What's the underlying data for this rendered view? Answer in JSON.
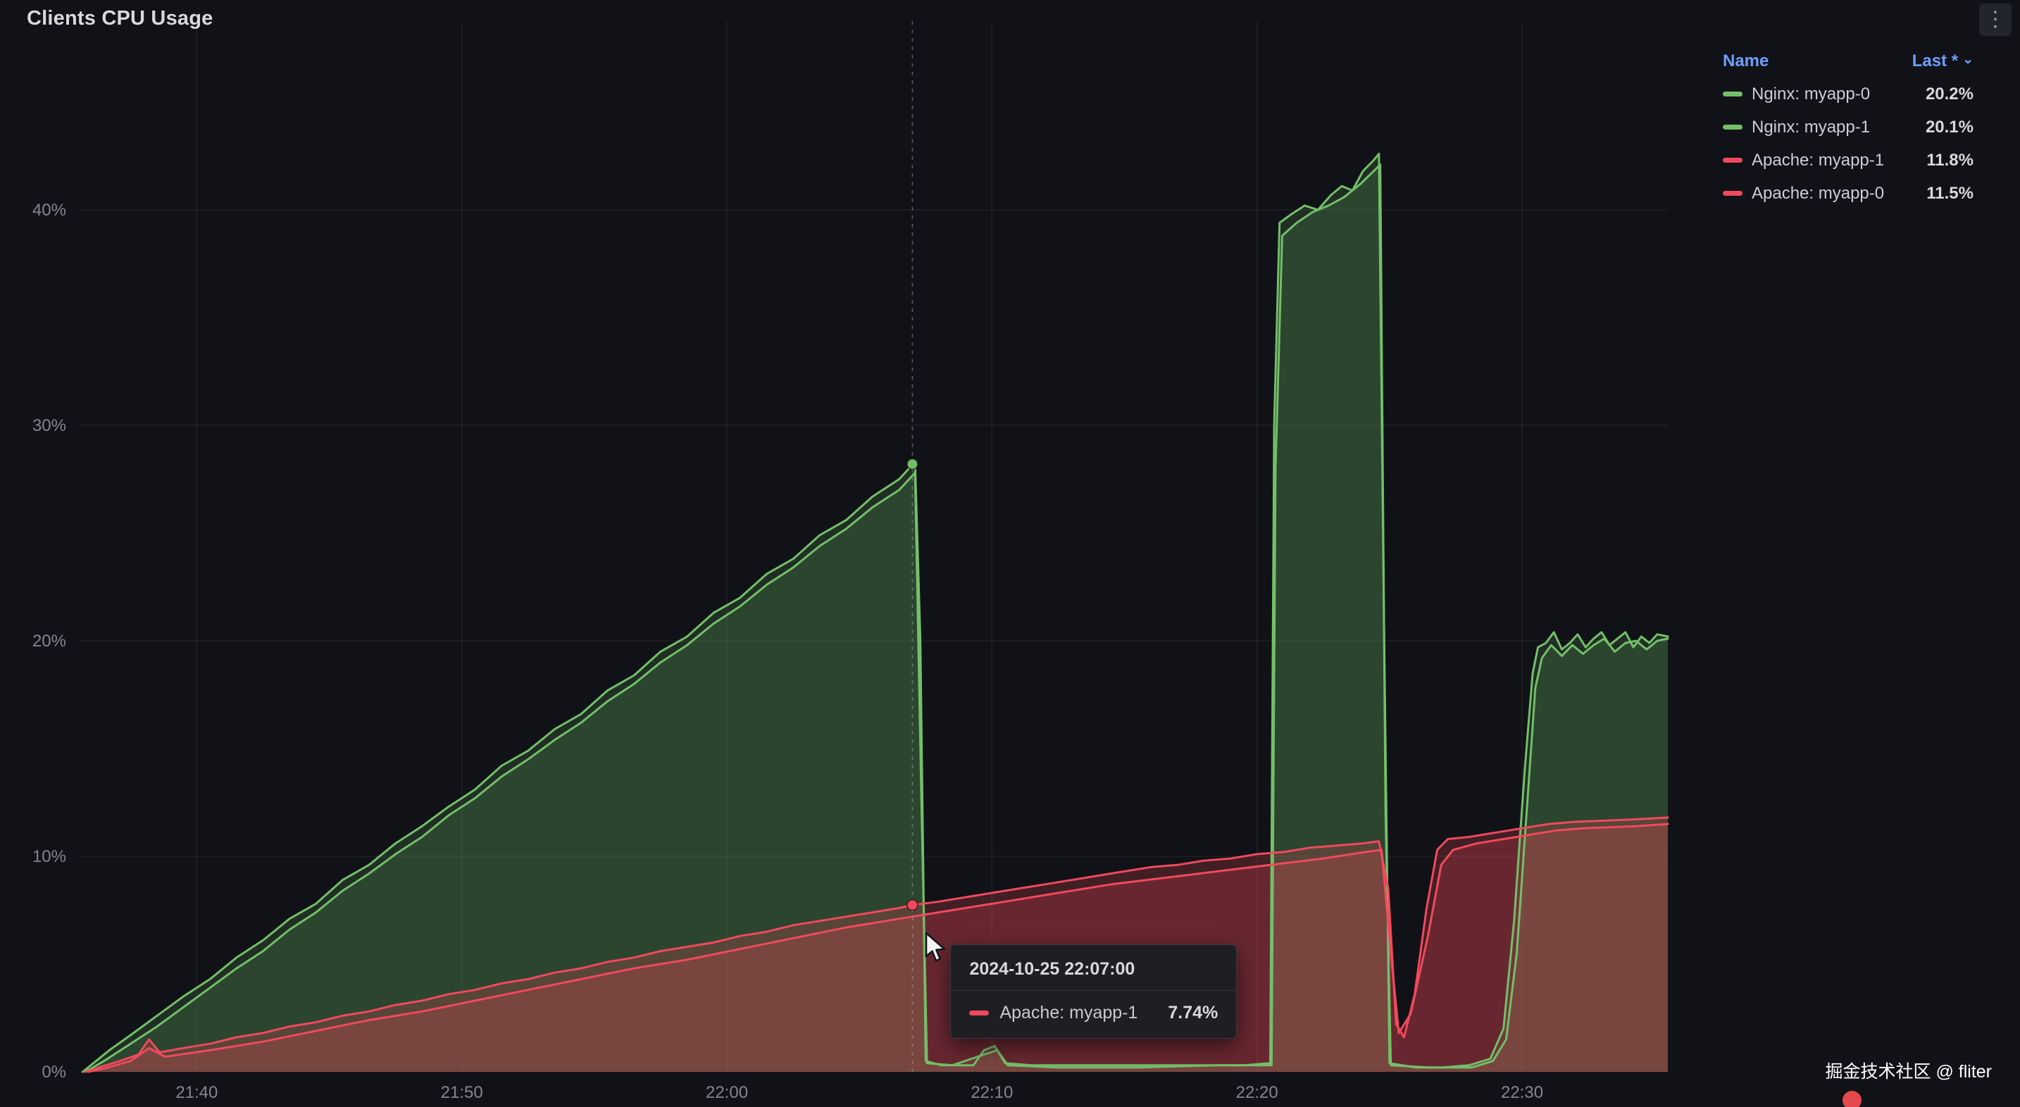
{
  "panel": {
    "title": "Clients CPU Usage"
  },
  "legend": {
    "name_header": "Name",
    "last_header": "Last *",
    "sort_caret": "⌄",
    "items": [
      {
        "label": "Nginx: myapp-0",
        "value": "20.2%",
        "color": "#73bf69"
      },
      {
        "label": "Nginx: myapp-1",
        "value": "20.1%",
        "color": "#73bf69"
      },
      {
        "label": "Apache: myapp-1",
        "value": "11.8%",
        "color": "#f2495c"
      },
      {
        "label": "Apache: myapp-0",
        "value": "11.5%",
        "color": "#f2495c"
      }
    ]
  },
  "tooltip": {
    "timestamp": "2024-10-25 22:07:00",
    "series_label": "Apache: myapp-1",
    "value": "7.74%",
    "marker_color": "#f2495c"
  },
  "watermark": {
    "text": "掘金技术社区 @ fliter"
  },
  "chart_data": {
    "type": "area",
    "title": "Clients CPU Usage",
    "unit": "%",
    "x_axis_start": "21:35:30",
    "x_axis_end": "22:35:30",
    "t_unit": "minutes since 21:35:30",
    "t_max": 60,
    "y_max": 48.8,
    "grid": true,
    "legend_position": "top-right",
    "x_ticks": [
      {
        "label": "21:40",
        "t": 4.5
      },
      {
        "label": "21:50",
        "t": 14.5
      },
      {
        "label": "22:00",
        "t": 24.5
      },
      {
        "label": "22:10",
        "t": 34.5
      },
      {
        "label": "22:20",
        "t": 44.5
      },
      {
        "label": "22:30",
        "t": 54.5
      }
    ],
    "y_ticks": [
      {
        "label": "0%",
        "v": 0
      },
      {
        "label": "10%",
        "v": 10
      },
      {
        "label": "20%",
        "v": 20
      },
      {
        "label": "30%",
        "v": 30
      },
      {
        "label": "40%",
        "v": 40
      }
    ],
    "crosshair": {
      "t": 31.5,
      "time": "2024-10-25 22:07:00",
      "points": [
        {
          "series": "Nginx: myapp-0",
          "v": 28.2,
          "color": "#73bf69"
        },
        {
          "series": "Apache: myapp-1",
          "v": 7.74,
          "color": "#f2495c"
        }
      ]
    },
    "series": [
      {
        "name": "Nginx: myapp-0",
        "color": "#73bf69",
        "fill_opacity": 0.16,
        "last": 20.2,
        "points": [
          [
            0.2,
            0
          ],
          [
            0.6,
            0.4
          ],
          [
            1.2,
            1.0
          ],
          [
            2,
            1.7
          ],
          [
            3,
            2.6
          ],
          [
            4,
            3.5
          ],
          [
            5,
            4.3
          ],
          [
            6,
            5.3
          ],
          [
            7,
            6.1
          ],
          [
            8,
            7.1
          ],
          [
            9,
            7.8
          ],
          [
            10,
            8.9
          ],
          [
            11,
            9.6
          ],
          [
            12,
            10.6
          ],
          [
            13,
            11.4
          ],
          [
            14,
            12.3
          ],
          [
            15,
            13.1
          ],
          [
            16,
            14.2
          ],
          [
            17,
            14.9
          ],
          [
            18,
            15.9
          ],
          [
            19,
            16.6
          ],
          [
            20,
            17.7
          ],
          [
            21,
            18.4
          ],
          [
            22,
            19.5
          ],
          [
            23,
            20.2
          ],
          [
            24,
            21.3
          ],
          [
            25,
            22.0
          ],
          [
            26,
            23.1
          ],
          [
            27,
            23.8
          ],
          [
            28,
            24.9
          ],
          [
            29,
            25.6
          ],
          [
            30,
            26.7
          ],
          [
            31,
            27.5
          ],
          [
            31.6,
            28.3
          ],
          [
            31.8,
            20.0
          ],
          [
            32.0,
            0.5
          ],
          [
            32.6,
            0.3
          ],
          [
            33.8,
            0.3
          ],
          [
            34.2,
            1.0
          ],
          [
            34.6,
            1.2
          ],
          [
            35.0,
            0.4
          ],
          [
            36,
            0.3
          ],
          [
            38,
            0.3
          ],
          [
            40,
            0.3
          ],
          [
            42,
            0.3
          ],
          [
            44,
            0.3
          ],
          [
            45.0,
            0.4
          ],
          [
            45.15,
            30.0
          ],
          [
            45.35,
            39.4
          ],
          [
            45.8,
            39.8
          ],
          [
            46.3,
            40.2
          ],
          [
            46.8,
            40.0
          ],
          [
            47.3,
            40.7
          ],
          [
            47.7,
            41.1
          ],
          [
            48.1,
            40.9
          ],
          [
            48.5,
            41.8
          ],
          [
            48.9,
            42.3
          ],
          [
            49.1,
            42.6
          ],
          [
            49.3,
            20.0
          ],
          [
            49.5,
            0.4
          ],
          [
            50.5,
            0.2
          ],
          [
            51.5,
            0.2
          ],
          [
            52.5,
            0.3
          ],
          [
            53.3,
            0.6
          ],
          [
            53.8,
            2.0
          ],
          [
            54.2,
            7.0
          ],
          [
            54.6,
            14.0
          ],
          [
            54.9,
            18.5
          ],
          [
            55.1,
            19.7
          ],
          [
            55.4,
            19.9
          ],
          [
            55.7,
            20.4
          ],
          [
            56.0,
            19.6
          ],
          [
            56.3,
            19.9
          ],
          [
            56.6,
            20.3
          ],
          [
            56.9,
            19.7
          ],
          [
            57.2,
            20.1
          ],
          [
            57.5,
            20.4
          ],
          [
            57.8,
            19.8
          ],
          [
            58.1,
            20.1
          ],
          [
            58.4,
            20.4
          ],
          [
            58.7,
            19.7
          ],
          [
            59.0,
            20.2
          ],
          [
            59.3,
            19.9
          ],
          [
            59.6,
            20.3
          ],
          [
            60,
            20.2
          ]
        ]
      },
      {
        "name": "Nginx: myapp-1",
        "color": "#73bf69",
        "fill_opacity": 0.16,
        "last": 20.1,
        "points": [
          [
            0.3,
            0
          ],
          [
            1,
            0.5
          ],
          [
            2,
            1.3
          ],
          [
            3,
            2.1
          ],
          [
            4,
            3.0
          ],
          [
            5,
            3.9
          ],
          [
            6,
            4.8
          ],
          [
            7,
            5.6
          ],
          [
            8,
            6.6
          ],
          [
            9,
            7.4
          ],
          [
            10,
            8.4
          ],
          [
            11,
            9.2
          ],
          [
            12,
            10.1
          ],
          [
            13,
            10.9
          ],
          [
            14,
            11.9
          ],
          [
            15,
            12.7
          ],
          [
            16,
            13.7
          ],
          [
            17,
            14.5
          ],
          [
            18,
            15.4
          ],
          [
            19,
            16.2
          ],
          [
            20,
            17.2
          ],
          [
            21,
            18.0
          ],
          [
            22,
            19.0
          ],
          [
            23,
            19.8
          ],
          [
            24,
            20.8
          ],
          [
            25,
            21.6
          ],
          [
            26,
            22.6
          ],
          [
            27,
            23.4
          ],
          [
            28,
            24.4
          ],
          [
            29,
            25.2
          ],
          [
            30,
            26.2
          ],
          [
            31,
            27.0
          ],
          [
            31.6,
            27.8
          ],
          [
            31.85,
            12.0
          ],
          [
            32.05,
            0.4
          ],
          [
            33,
            0.3
          ],
          [
            34.2,
            0.8
          ],
          [
            34.7,
            1.0
          ],
          [
            35.1,
            0.3
          ],
          [
            37,
            0.2
          ],
          [
            40,
            0.2
          ],
          [
            43,
            0.3
          ],
          [
            45.05,
            0.3
          ],
          [
            45.2,
            28.0
          ],
          [
            45.45,
            38.8
          ],
          [
            46.0,
            39.4
          ],
          [
            46.6,
            39.9
          ],
          [
            47.2,
            40.2
          ],
          [
            47.8,
            40.6
          ],
          [
            48.4,
            41.2
          ],
          [
            48.9,
            41.8
          ],
          [
            49.15,
            42.1
          ],
          [
            49.35,
            12.0
          ],
          [
            49.55,
            0.3
          ],
          [
            51,
            0.2
          ],
          [
            52.6,
            0.2
          ],
          [
            53.4,
            0.5
          ],
          [
            53.9,
            1.5
          ],
          [
            54.3,
            5.5
          ],
          [
            54.7,
            12.5
          ],
          [
            55.0,
            17.8
          ],
          [
            55.25,
            19.2
          ],
          [
            55.6,
            19.8
          ],
          [
            56.0,
            19.3
          ],
          [
            56.4,
            19.8
          ],
          [
            56.8,
            19.4
          ],
          [
            57.2,
            19.8
          ],
          [
            57.6,
            20.1
          ],
          [
            58.0,
            19.5
          ],
          [
            58.4,
            19.9
          ],
          [
            58.8,
            20.0
          ],
          [
            59.2,
            19.6
          ],
          [
            59.6,
            20.0
          ],
          [
            60,
            20.1
          ]
        ]
      },
      {
        "name": "Apache: myapp-1",
        "color": "#f2495c",
        "fill_opacity": 0.22,
        "last": 11.8,
        "points": [
          [
            0.3,
            0
          ],
          [
            0.8,
            0.2
          ],
          [
            1.6,
            0.5
          ],
          [
            2.3,
            0.8
          ],
          [
            2.7,
            1.5
          ],
          [
            3.1,
            0.9
          ],
          [
            4,
            1.1
          ],
          [
            5,
            1.3
          ],
          [
            6,
            1.6
          ],
          [
            7,
            1.8
          ],
          [
            8,
            2.1
          ],
          [
            9,
            2.3
          ],
          [
            10,
            2.6
          ],
          [
            11,
            2.8
          ],
          [
            12,
            3.1
          ],
          [
            13,
            3.3
          ],
          [
            14,
            3.6
          ],
          [
            15,
            3.8
          ],
          [
            16,
            4.1
          ],
          [
            17,
            4.3
          ],
          [
            18,
            4.6
          ],
          [
            19,
            4.8
          ],
          [
            20,
            5.1
          ],
          [
            21,
            5.3
          ],
          [
            22,
            5.6
          ],
          [
            23,
            5.8
          ],
          [
            24,
            6.0
          ],
          [
            25,
            6.3
          ],
          [
            26,
            6.5
          ],
          [
            27,
            6.8
          ],
          [
            28,
            7.0
          ],
          [
            29,
            7.2
          ],
          [
            30,
            7.4
          ],
          [
            31,
            7.6
          ],
          [
            31.5,
            7.74
          ],
          [
            32.5,
            7.9
          ],
          [
            33.5,
            8.1
          ],
          [
            34.5,
            8.3
          ],
          [
            35.5,
            8.5
          ],
          [
            36.5,
            8.7
          ],
          [
            37.5,
            8.9
          ],
          [
            38.5,
            9.1
          ],
          [
            39.5,
            9.3
          ],
          [
            40.5,
            9.5
          ],
          [
            41.5,
            9.6
          ],
          [
            42.5,
            9.8
          ],
          [
            43.5,
            9.9
          ],
          [
            44.5,
            10.1
          ],
          [
            45.5,
            10.2
          ],
          [
            46.5,
            10.4
          ],
          [
            47.5,
            10.5
          ],
          [
            48.5,
            10.6
          ],
          [
            49.1,
            10.7
          ],
          [
            49.45,
            8.5
          ],
          [
            49.75,
            2.2
          ],
          [
            50.05,
            1.6
          ],
          [
            50.45,
            3.6
          ],
          [
            50.9,
            7.6
          ],
          [
            51.3,
            10.3
          ],
          [
            51.7,
            10.8
          ],
          [
            52.5,
            10.9
          ],
          [
            53.5,
            11.1
          ],
          [
            54.5,
            11.3
          ],
          [
            55.5,
            11.5
          ],
          [
            56.5,
            11.6
          ],
          [
            57.5,
            11.65
          ],
          [
            58.5,
            11.7
          ],
          [
            59.3,
            11.75
          ],
          [
            60,
            11.8
          ]
        ]
      },
      {
        "name": "Apache: myapp-0",
        "color": "#f2495c",
        "fill_opacity": 0.22,
        "last": 11.5,
        "points": [
          [
            0.4,
            0
          ],
          [
            1,
            0.15
          ],
          [
            2,
            0.5
          ],
          [
            2.7,
            1.1
          ],
          [
            3.3,
            0.7
          ],
          [
            5,
            1.0
          ],
          [
            7,
            1.4
          ],
          [
            9,
            1.9
          ],
          [
            11,
            2.4
          ],
          [
            13,
            2.8
          ],
          [
            15,
            3.3
          ],
          [
            17,
            3.8
          ],
          [
            19,
            4.3
          ],
          [
            21,
            4.8
          ],
          [
            23,
            5.2
          ],
          [
            25,
            5.7
          ],
          [
            27,
            6.2
          ],
          [
            29,
            6.7
          ],
          [
            31,
            7.1
          ],
          [
            33,
            7.5
          ],
          [
            35,
            7.9
          ],
          [
            37,
            8.3
          ],
          [
            39,
            8.7
          ],
          [
            41,
            9.0
          ],
          [
            43,
            9.3
          ],
          [
            45,
            9.6
          ],
          [
            47,
            9.9
          ],
          [
            48.6,
            10.2
          ],
          [
            49.2,
            10.3
          ],
          [
            49.55,
            5.5
          ],
          [
            49.85,
            1.8
          ],
          [
            50.3,
            2.7
          ],
          [
            50.95,
            6.3
          ],
          [
            51.45,
            9.6
          ],
          [
            51.9,
            10.3
          ],
          [
            52.8,
            10.6
          ],
          [
            53.8,
            10.8
          ],
          [
            54.8,
            11.0
          ],
          [
            55.8,
            11.2
          ],
          [
            56.8,
            11.3
          ],
          [
            57.8,
            11.35
          ],
          [
            58.8,
            11.4
          ],
          [
            59.4,
            11.45
          ],
          [
            60,
            11.5
          ]
        ]
      }
    ]
  }
}
